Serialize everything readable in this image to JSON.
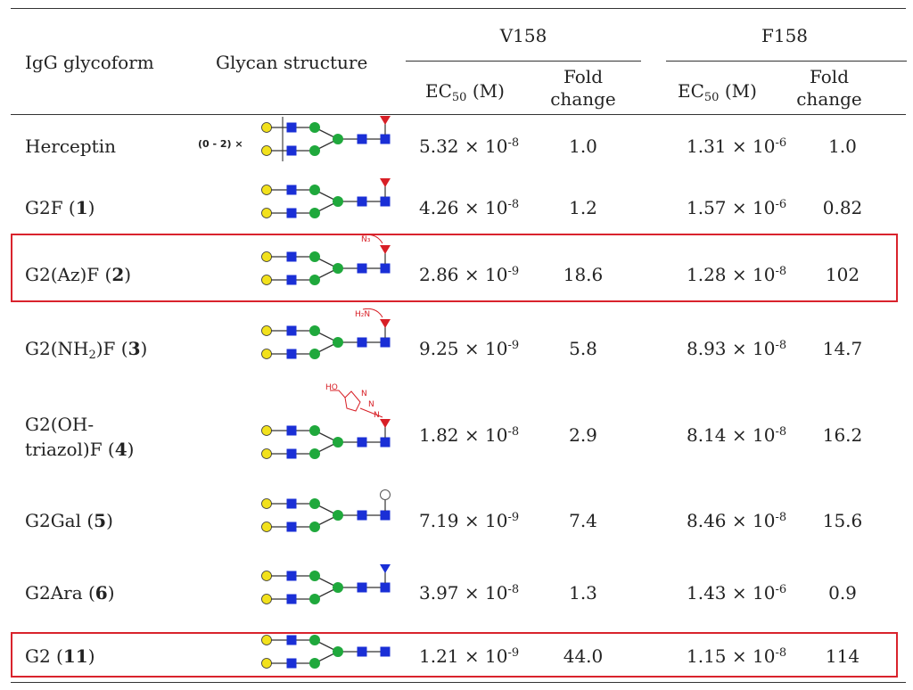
{
  "header": {
    "col_glycoform": "IgG glycoform",
    "col_structure": "Glycan structure",
    "group_v158": "V158",
    "group_f158": "F158",
    "ec50_label": "EC",
    "ec50_sub": "50",
    "ec50_unit": "(M)",
    "fold_line1": "Fold",
    "fold_line2": "change"
  },
  "rows": [
    {
      "name": "Herceptin",
      "id": "",
      "v_mant": "5.32 × 10",
      "v_exp": "-8",
      "v_fold": "1.0",
      "f_mant": "1.31 × 10",
      "f_exp": "-6",
      "f_fold": "1.0",
      "prefix": "(0 - 2) ×",
      "mod": "fuc"
    },
    {
      "name": "G2F (",
      "id": "1",
      "v_mant": "4.26 × 10",
      "v_exp": "-8",
      "v_fold": "1.2",
      "f_mant": "1.57 × 10",
      "f_exp": "-6",
      "f_fold": "0.82",
      "mod": "fuc"
    },
    {
      "name": "G2(Az)F (",
      "id": "2",
      "v_mant": "2.86 × 10",
      "v_exp": "-9",
      "v_fold": "18.6",
      "f_mant": "1.28 × 10",
      "f_exp": "-8",
      "f_fold": "102",
      "mod": "fuc",
      "tag": "N₃"
    },
    {
      "name_pre": "G2(NH",
      "name_sub": "2",
      "name": ")F (",
      "id": "3",
      "v_mant": "9.25 × 10",
      "v_exp": "-9",
      "v_fold": "5.8",
      "f_mant": "8.93 × 10",
      "f_exp": "-8",
      "f_fold": "14.7",
      "mod": "fuc",
      "tag": "H₂N"
    },
    {
      "name_l1": "G2(OH-",
      "name": "triazol)F (",
      "id": "4",
      "v_mant": "1.82 × 10",
      "v_exp": "-8",
      "v_fold": "2.9",
      "f_mant": "8.14 × 10",
      "f_exp": "-8",
      "f_fold": "16.2",
      "mod": "fuc",
      "tag": "HO",
      "tag2": "N",
      "tag3": "N",
      "tag4": "N"
    },
    {
      "name": "G2Gal (",
      "id": "5",
      "v_mant": "7.19 × 10",
      "v_exp": "-9",
      "v_fold": "7.4",
      "f_mant": "8.46 × 10",
      "f_exp": "-8",
      "f_fold": "15.6",
      "mod": "gal"
    },
    {
      "name": "G2Ara (",
      "id": "6",
      "v_mant": "3.97 × 10",
      "v_exp": "-8",
      "v_fold": "1.3",
      "f_mant": "1.43 × 10",
      "f_exp": "-6",
      "f_fold": "0.9",
      "mod": "ara"
    },
    {
      "name": "G2 (",
      "id": "11",
      "v_mant": "1.21 × 10",
      "v_exp": "-9",
      "v_fold": "44.0",
      "f_mant": "1.15 × 10",
      "f_exp": "-8",
      "f_fold": "114",
      "mod": "none"
    }
  ],
  "colors": {
    "galactose": "#f2e11c",
    "glcnac": "#1a2fd6",
    "mannose": "#1fa83c",
    "fucose": "#d81f26",
    "arabinose": "#1a2fd6",
    "highlight": "#d9232d",
    "chem_label": "#d81f26"
  }
}
